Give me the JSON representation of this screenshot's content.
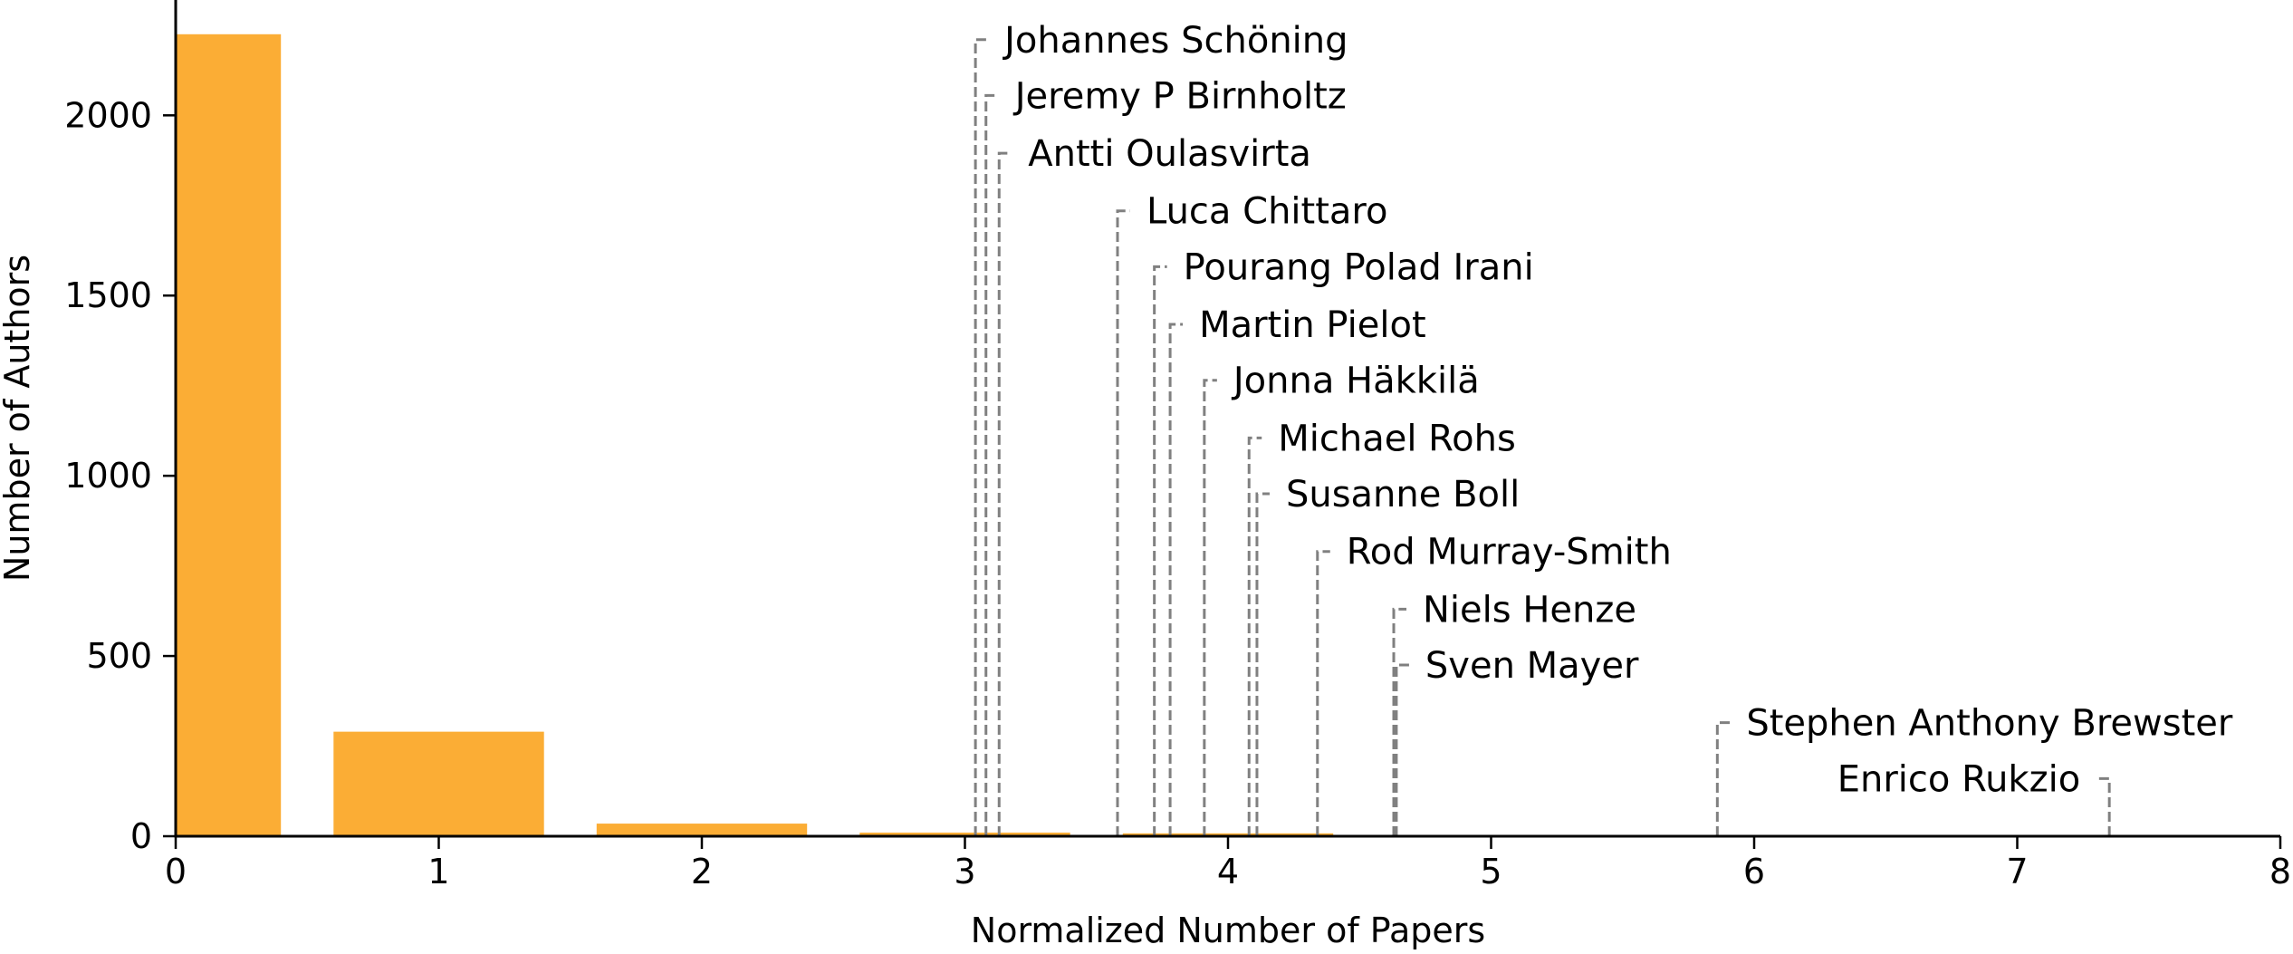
{
  "chart_data": {
    "type": "bar",
    "xlabel": "Normalized Number of Papers",
    "ylabel": "Number of Authors",
    "xlim": [
      0,
      8
    ],
    "ylim": [
      0,
      2320
    ],
    "grid": false,
    "bar_color": "#FBAD35",
    "leader_color": "#808080",
    "bars": [
      {
        "x_start": 0,
        "x_end": 0.4,
        "value": 2225
      },
      {
        "x_start": 0.6,
        "x_end": 1.4,
        "value": 290
      },
      {
        "x_start": 1.6,
        "x_end": 2.4,
        "value": 35
      },
      {
        "x_start": 2.6,
        "x_end": 3.4,
        "value": 10
      },
      {
        "x_start": 3.6,
        "x_end": 4.4,
        "value": 8
      }
    ],
    "x_ticks": [
      {
        "value": 0,
        "label": "0"
      },
      {
        "value": 1,
        "label": "1"
      },
      {
        "value": 2,
        "label": "2"
      },
      {
        "value": 3,
        "label": "3"
      },
      {
        "value": 4,
        "label": "4"
      },
      {
        "value": 5,
        "label": "5"
      },
      {
        "value": 6,
        "label": "6"
      },
      {
        "value": 7,
        "label": "7"
      },
      {
        "value": 8,
        "label": "8"
      }
    ],
    "y_ticks": [
      {
        "value": 0,
        "label": "0"
      },
      {
        "value": 500,
        "label": "500"
      },
      {
        "value": 1000,
        "label": "1000"
      },
      {
        "value": 1500,
        "label": "1500"
      },
      {
        "value": 2000,
        "label": "2000"
      }
    ],
    "annotations": [
      {
        "name": "Johannes Schöning",
        "x": 3.04,
        "label_y": 2210,
        "side": "right"
      },
      {
        "name": "Jeremy P Birnholtz",
        "x": 3.08,
        "label_y": 2055,
        "side": "right"
      },
      {
        "name": "Antti Oulasvirta",
        "x": 3.13,
        "label_y": 1895,
        "side": "right"
      },
      {
        "name": "Luca Chittaro",
        "x": 3.58,
        "label_y": 1735,
        "side": "right"
      },
      {
        "name": "Pourang Polad Irani",
        "x": 3.72,
        "label_y": 1580,
        "side": "right"
      },
      {
        "name": "Martin Pielot",
        "x": 3.78,
        "label_y": 1420,
        "side": "right"
      },
      {
        "name": "Jonna Häkkilä",
        "x": 3.91,
        "label_y": 1265,
        "side": "right"
      },
      {
        "name": "Michael Rohs",
        "x": 4.08,
        "label_y": 1105,
        "side": "right"
      },
      {
        "name": "Susanne Boll",
        "x": 4.11,
        "label_y": 950,
        "side": "right"
      },
      {
        "name": "Rod Murray-Smith",
        "x": 4.34,
        "label_y": 790,
        "side": "right"
      },
      {
        "name": "Niels Henze",
        "x": 4.63,
        "label_y": 630,
        "side": "right"
      },
      {
        "name": "Sven Mayer",
        "x": 4.64,
        "label_y": 475,
        "side": "right"
      },
      {
        "name": "Stephen Anthony Brewster",
        "x": 5.86,
        "label_y": 315,
        "side": "right"
      },
      {
        "name": "Enrico Rukzio",
        "x": 7.35,
        "label_y": 160,
        "side": "left"
      }
    ]
  }
}
